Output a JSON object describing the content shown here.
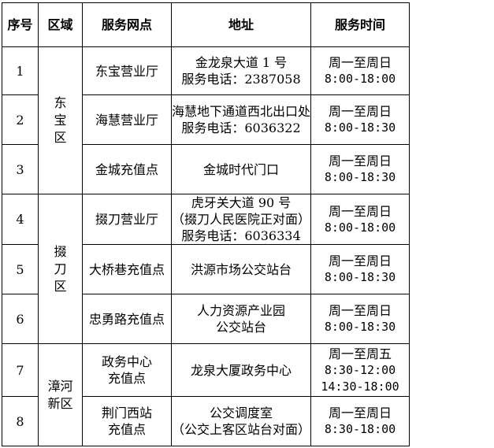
{
  "headers": [
    "序号",
    "区域",
    "服务网点",
    "地址",
    "服务时间"
  ],
  "districts": [
    {
      "name_lines": [
        "东",
        "宝",
        "区"
      ]
    },
    {
      "name_lines": [
        "掇",
        "刀",
        "区"
      ]
    },
    {
      "name_lines": [
        "漳河",
        "新区"
      ]
    }
  ],
  "rows": [
    {
      "no": "1",
      "outlet": [
        "东宝营业厅"
      ],
      "address": [
        "金龙泉大道 1 号",
        "服务电话：2387058"
      ],
      "hours": [
        "周一至周日",
        "8:00-18:00"
      ]
    },
    {
      "no": "2",
      "outlet": [
        "海慧营业厅"
      ],
      "address": [
        "海慧地下通道西北出口处",
        "服务电话：6036322"
      ],
      "hours": [
        "周一至周日",
        "8:00-18:30"
      ]
    },
    {
      "no": "3",
      "outlet": [
        "金城充值点"
      ],
      "address": [
        "金城时代门口"
      ],
      "hours": [
        "周一至周日",
        "8:00-18:30"
      ]
    },
    {
      "no": "4",
      "outlet": [
        "掇刀营业厅"
      ],
      "address": [
        "虎牙关大道 90 号",
        "（掇刀人民医院正对面）",
        "服务电话：6036334"
      ],
      "hours": [
        "周一至周日",
        "8:00-18:00"
      ]
    },
    {
      "no": "5",
      "outlet": [
        "大桥巷充值点"
      ],
      "address": [
        "洪源市场公交站台"
      ],
      "hours": [
        "周一至周日",
        "8:00-18:30"
      ]
    },
    {
      "no": "6",
      "outlet": [
        "忠勇路充值点"
      ],
      "address": [
        "人力资源产业园",
        "公交站台"
      ],
      "hours": [
        "周一至周日",
        "8:00-18:30"
      ]
    },
    {
      "no": "7",
      "outlet": [
        "政务中心",
        "充值点"
      ],
      "address": [
        "龙泉大厦政务中心"
      ],
      "hours": [
        "周一至周五",
        "8:30-12:00",
        "14:30-18:00"
      ]
    },
    {
      "no": "8",
      "outlet": [
        "荆门西站",
        "充值点"
      ],
      "address": [
        "公交调度室",
        "（公交上客区站台对面）"
      ],
      "hours": [
        "周一至周日",
        "8:30-18:00"
      ]
    }
  ]
}
